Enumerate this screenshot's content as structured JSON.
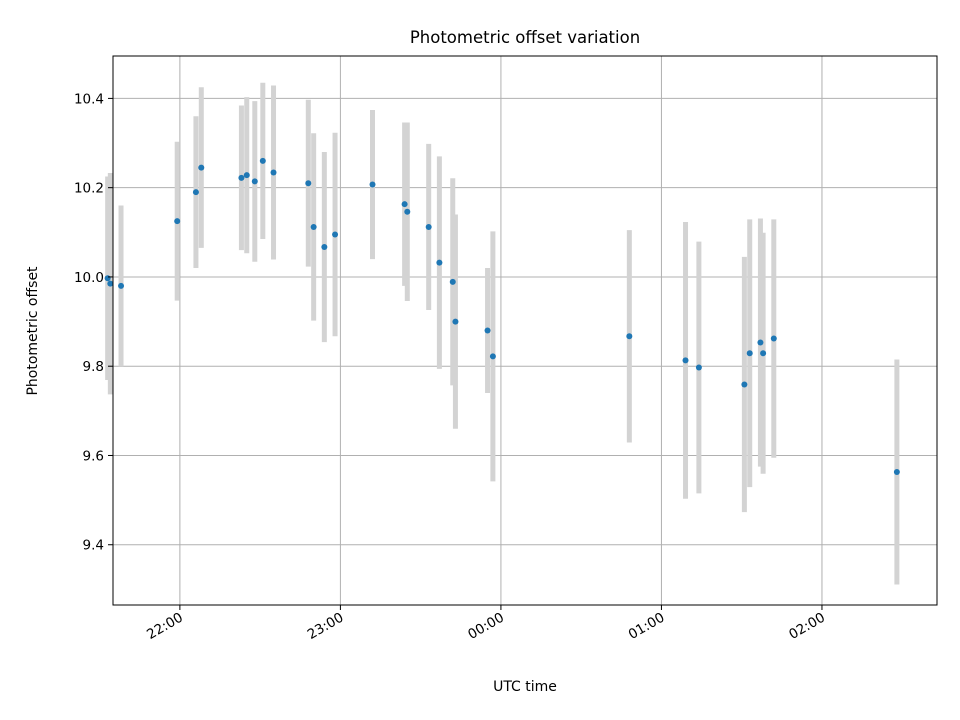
{
  "chart_data": {
    "type": "scatter",
    "title": "Photometric offset variation",
    "xlabel": "UTC time",
    "ylabel": "Photometric offset",
    "x_unit": "UTC time (HH:MM)",
    "xlim": [
      "21:35",
      "02:43"
    ],
    "ylim": [
      9.265,
      10.495
    ],
    "x_ticks": [
      "22:00",
      "23:00",
      "00:00",
      "01:00",
      "02:00"
    ],
    "y_ticks": [
      "9.4",
      "9.6",
      "9.8",
      "10.0",
      "10.2",
      "10.4"
    ],
    "grid": true,
    "point_color": "#1f77b4",
    "errorbar_color": "#d3d3d3",
    "series": [
      {
        "points": [
          {
            "t": "21:33",
            "y": 9.997,
            "err": 0.228
          },
          {
            "t": "21:34",
            "y": 9.985,
            "err": 0.248
          },
          {
            "t": "21:38",
            "y": 9.98,
            "err": 0.18
          },
          {
            "t": "21:59",
            "y": 10.125,
            "err": 0.178
          },
          {
            "t": "22:06",
            "y": 10.19,
            "err": 0.17
          },
          {
            "t": "22:08",
            "y": 10.245,
            "err": 0.18
          },
          {
            "t": "22:23",
            "y": 10.222,
            "err": 0.162
          },
          {
            "t": "22:25",
            "y": 10.228,
            "err": 0.175
          },
          {
            "t": "22:28",
            "y": 10.214,
            "err": 0.18
          },
          {
            "t": "22:31",
            "y": 10.26,
            "err": 0.175
          },
          {
            "t": "22:35",
            "y": 10.234,
            "err": 0.195
          },
          {
            "t": "22:48",
            "y": 10.21,
            "err": 0.187
          },
          {
            "t": "22:50",
            "y": 10.112,
            "err": 0.21
          },
          {
            "t": "22:54",
            "y": 10.067,
            "err": 0.213
          },
          {
            "t": "22:58",
            "y": 10.095,
            "err": 0.228
          },
          {
            "t": "23:12",
            "y": 10.207,
            "err": 0.167
          },
          {
            "t": "23:24",
            "y": 10.163,
            "err": 0.183
          },
          {
            "t": "23:25",
            "y": 10.146,
            "err": 0.2
          },
          {
            "t": "23:33",
            "y": 10.112,
            "err": 0.186
          },
          {
            "t": "23:37",
            "y": 10.032,
            "err": 0.238
          },
          {
            "t": "23:42",
            "y": 9.989,
            "err": 0.232
          },
          {
            "t": "23:43",
            "y": 9.9,
            "err": 0.24
          },
          {
            "t": "23:55",
            "y": 9.88,
            "err": 0.14
          },
          {
            "t": "23:57",
            "y": 9.822,
            "err": 0.28
          },
          {
            "t": "00:48",
            "y": 9.867,
            "err": 0.238
          },
          {
            "t": "01:09",
            "y": 9.813,
            "err": 0.31
          },
          {
            "t": "01:14",
            "y": 9.797,
            "err": 0.282
          },
          {
            "t": "01:31",
            "y": 9.759,
            "err": 0.286
          },
          {
            "t": "01:33",
            "y": 9.829,
            "err": 0.3
          },
          {
            "t": "01:37",
            "y": 9.853,
            "err": 0.278
          },
          {
            "t": "01:38",
            "y": 9.829,
            "err": 0.27
          },
          {
            "t": "01:42",
            "y": 9.862,
            "err": 0.267
          },
          {
            "t": "02:28",
            "y": 9.563,
            "err": 0.252
          }
        ]
      }
    ]
  }
}
